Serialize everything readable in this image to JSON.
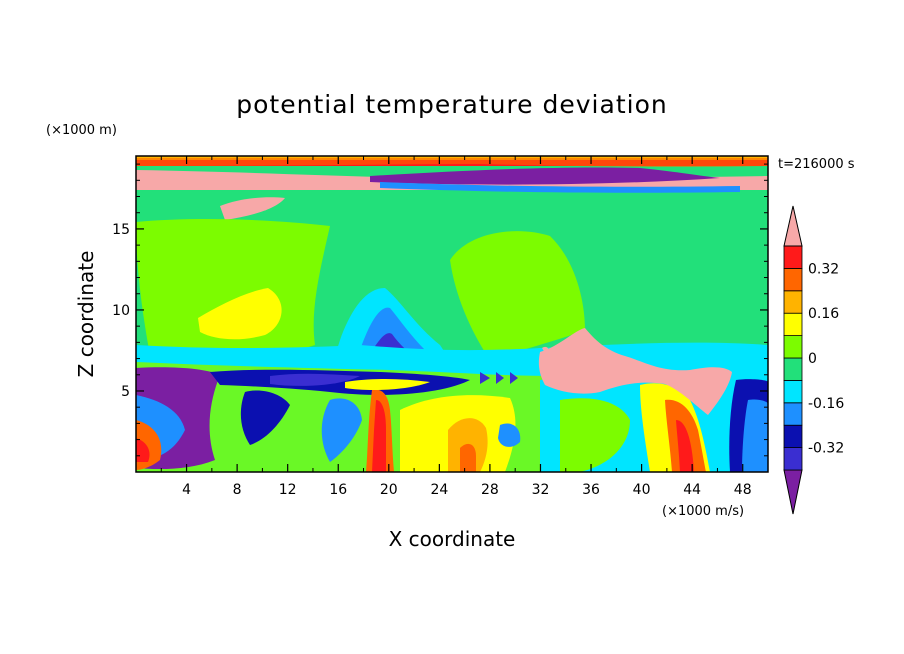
{
  "chart_data": {
    "type": "heatmap",
    "title": "potential temperature deviation",
    "xlabel": "X coordinate",
    "ylabel": "Z coordinate",
    "x_unit": "(×1000 m/s)",
    "y_unit": "(×1000 m)",
    "time_label": "t=216000 s",
    "xlim": [
      0,
      50
    ],
    "ylim": [
      0,
      19.5
    ],
    "x_ticks": [
      "4",
      "8",
      "12",
      "16",
      "20",
      "24",
      "28",
      "32",
      "36",
      "40",
      "44",
      "48"
    ],
    "y_ticks": [
      "5",
      "10",
      "15"
    ],
    "colorbar": {
      "levels": [
        -0.4,
        -0.32,
        -0.24,
        -0.16,
        -0.08,
        0,
        0.08,
        0.16,
        0.24,
        0.32,
        0.4
      ],
      "tick_labels": [
        "-0.32",
        "-0.16",
        "0",
        "0.16",
        "0.32"
      ],
      "tick_values": [
        -0.32,
        -0.16,
        0,
        0.16,
        0.32
      ],
      "colors": [
        "#7B1FA2",
        "#3A2ED1",
        "#0B10B0",
        "#1E90FF",
        "#00E5FF",
        "#22E07A",
        "#7CFC00",
        "#FFFF00",
        "#FFB300",
        "#FF6600",
        "#FF1A1A",
        "#F7A8A8"
      ],
      "extend": "both"
    }
  }
}
